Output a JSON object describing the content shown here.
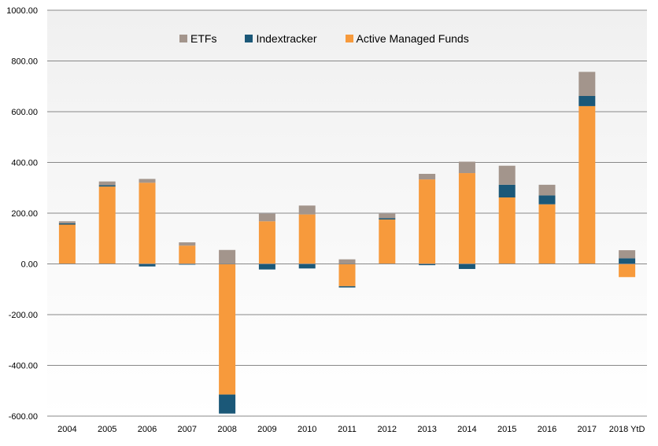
{
  "chart_data": {
    "type": "bar",
    "stacked": true,
    "title": "",
    "xlabel": "",
    "ylabel": "",
    "ylim": [
      -600,
      1000
    ],
    "yticks": [
      -600,
      -400,
      -200,
      0,
      200,
      400,
      600,
      800,
      1000
    ],
    "ytick_labels": [
      "-600.00",
      "-400.00",
      "-200.00",
      "0.00",
      "200.00",
      "400.00",
      "600.00",
      "800.00",
      "1000.00"
    ],
    "grid": true,
    "legend_position": "top",
    "categories": [
      "2004",
      "2005",
      "2006",
      "2007",
      "2008",
      "2009",
      "2010",
      "2011",
      "2012",
      "2013",
      "2014",
      "2015",
      "2016",
      "2017",
      "2018 YtD"
    ],
    "series": [
      {
        "name": "Active Managed Funds",
        "color": "#F79A3C",
        "values": [
          155,
          305,
          320,
          72,
          -515,
          168,
          195,
          -88,
          175,
          333,
          358,
          262,
          235,
          622,
          -52
        ]
      },
      {
        "name": "Indextracker",
        "color": "#1B5878",
        "values": [
          5,
          5,
          -10,
          -3,
          -75,
          -22,
          -18,
          -5,
          5,
          -5,
          -20,
          50,
          35,
          40,
          22
        ]
      },
      {
        "name": "ETFs",
        "color": "#A3958C",
        "values": [
          8,
          15,
          15,
          13,
          55,
          30,
          35,
          18,
          18,
          22,
          45,
          75,
          42,
          95,
          32
        ]
      }
    ],
    "legend_order": [
      "ETFs",
      "Indextracker",
      "Active Managed Funds"
    ]
  },
  "colors": {
    "background_panel": "#F5F5F5",
    "gridline": "#888888"
  }
}
